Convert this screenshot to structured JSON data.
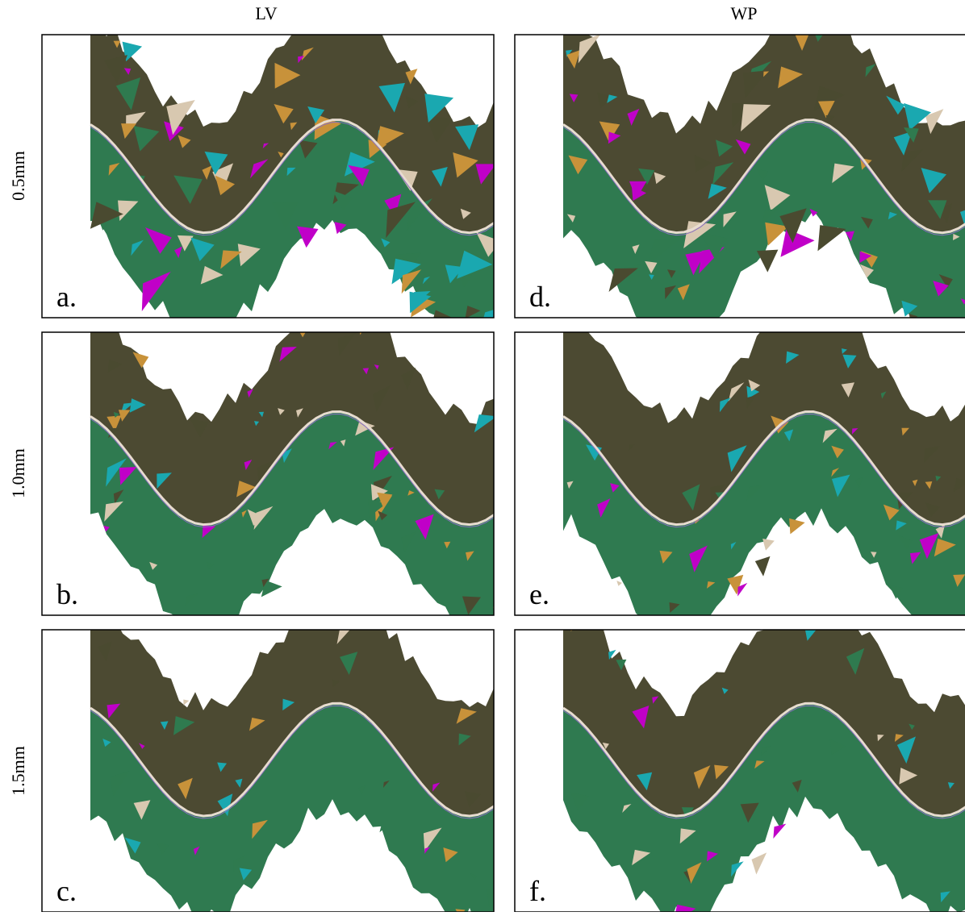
{
  "column_titles": [
    "LV",
    "WP"
  ],
  "row_labels": [
    "0.5mm",
    "1.0mm",
    "1.5mm"
  ],
  "panels": [
    "a.",
    "b.",
    "c.",
    "d.",
    "e.",
    "f."
  ]
}
